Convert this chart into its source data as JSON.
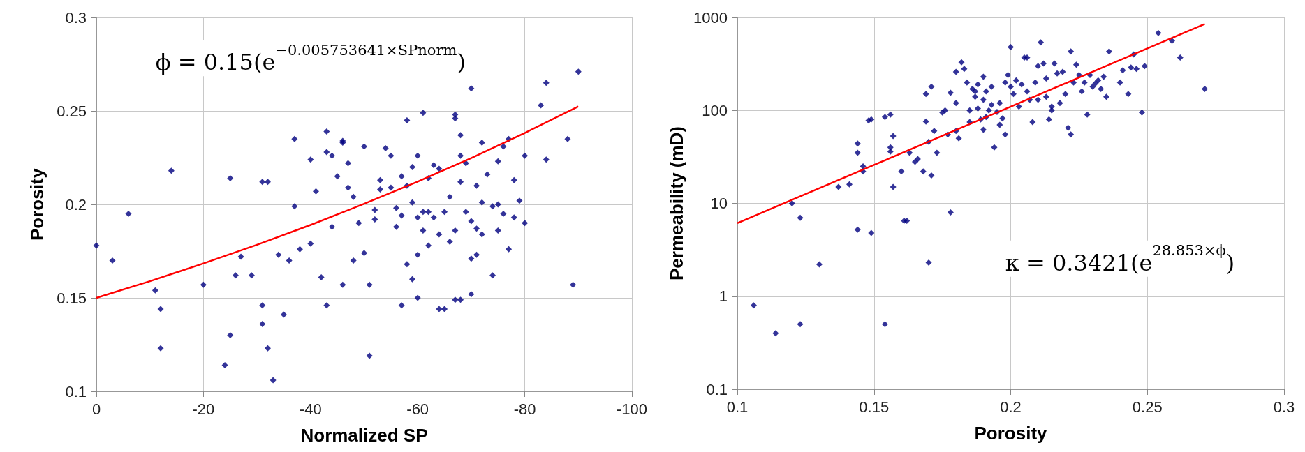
{
  "chart_data": [
    {
      "type": "scatter",
      "xlabel": "Normalized SP",
      "ylabel": "Porosity",
      "xlim": [
        0,
        -100
      ],
      "xticks": [
        0,
        -20,
        -40,
        -60,
        -80,
        -100
      ],
      "ylim": [
        0.1,
        0.3
      ],
      "yticks": [
        0.1,
        0.15,
        0.2,
        0.25,
        0.3
      ],
      "grid": true,
      "marker": "diamond",
      "annotations": [
        "ϕ = 0.15(e$^{−0.005753641×SPnorm}$)"
      ],
      "series": [
        {
          "type": "scatter",
          "color": "#000080",
          "x": [
            0,
            -3,
            -6,
            -11,
            -12,
            -12,
            -14,
            -20,
            -24,
            -25,
            -25,
            -26,
            -27,
            -29,
            -31,
            -32,
            -31,
            -31,
            -32,
            -33,
            -34,
            -35,
            -36,
            -37,
            -37,
            -38,
            -40,
            -40,
            -41,
            -42,
            -43,
            -43,
            -43,
            -44,
            -44,
            -45,
            -46,
            -46,
            -46,
            -47,
            -47,
            -48,
            -48,
            -49,
            -50,
            -50,
            -51,
            -51,
            -52,
            -52,
            -53,
            -53,
            -54,
            -55,
            -55,
            -56,
            -56,
            -57,
            -57,
            -57,
            -58,
            -58,
            -58,
            -59,
            -59,
            -60,
            -60,
            -60,
            -61,
            -61,
            -61,
            -62,
            -62,
            -63,
            -63,
            -64,
            -64,
            -65,
            -65,
            -66,
            -66,
            -67,
            -67,
            -67,
            -67,
            -68,
            -68,
            -68,
            -68,
            -69,
            -69,
            -70,
            -70,
            -70,
            -70,
            -71,
            -71,
            -72,
            -72,
            -72,
            -73,
            -74,
            -74,
            -75,
            -75,
            -75,
            -76,
            -76,
            -77,
            -77,
            -78,
            -78,
            -79,
            -80,
            -80,
            -83,
            -84,
            -84,
            -88,
            -89,
            -90,
            -71,
            -64,
            -62,
            -59,
            -60
          ],
          "values": [
            0.178,
            0.17,
            0.195,
            0.154,
            0.144,
            0.123,
            0.218,
            0.157,
            0.114,
            0.214,
            0.13,
            0.162,
            0.172,
            0.162,
            0.212,
            0.212,
            0.146,
            0.136,
            0.123,
            0.106,
            0.173,
            0.141,
            0.17,
            0.235,
            0.199,
            0.176,
            0.224,
            0.179,
            0.207,
            0.161,
            0.146,
            0.239,
            0.228,
            0.226,
            0.188,
            0.215,
            0.233,
            0.234,
            0.157,
            0.222,
            0.209,
            0.17,
            0.204,
            0.19,
            0.231,
            0.174,
            0.119,
            0.157,
            0.197,
            0.192,
            0.213,
            0.208,
            0.23,
            0.226,
            0.209,
            0.198,
            0.188,
            0.194,
            0.215,
            0.146,
            0.245,
            0.168,
            0.21,
            0.22,
            0.201,
            0.226,
            0.193,
            0.173,
            0.249,
            0.186,
            0.196,
            0.178,
            0.214,
            0.221,
            0.193,
            0.219,
            0.184,
            0.144,
            0.196,
            0.204,
            0.18,
            0.248,
            0.246,
            0.186,
            0.149,
            0.237,
            0.226,
            0.212,
            0.149,
            0.222,
            0.196,
            0.262,
            0.191,
            0.171,
            0.152,
            0.21,
            0.187,
            0.233,
            0.201,
            0.184,
            0.216,
            0.199,
            0.162,
            0.223,
            0.2,
            0.186,
            0.231,
            0.195,
            0.235,
            0.176,
            0.213,
            0.193,
            0.202,
            0.19,
            0.226,
            0.253,
            0.265,
            0.224,
            0.235,
            0.157,
            0.271,
            0.173,
            0.144,
            0.196,
            0.16,
            0.15
          ]
        },
        {
          "type": "line",
          "color": "#ff0000",
          "marker": "none",
          "x": [
            0,
            -10,
            -20,
            -30,
            -40,
            -50,
            -60,
            -70,
            -80,
            -90
          ],
          "values": [
            0.15,
            0.1589,
            0.1684,
            0.1784,
            0.189,
            0.2003,
            0.2122,
            0.2248,
            0.2382,
            0.2524
          ]
        }
      ]
    },
    {
      "type": "scatter",
      "xlabel": "Porosity",
      "ylabel": "Permeability (mD)",
      "log": "y",
      "xlim": [
        0.1,
        0.3
      ],
      "xticks": [
        0.1,
        0.15,
        0.2,
        0.25,
        0.3
      ],
      "ylim": [
        0.1,
        1000
      ],
      "yticks": [
        0.1,
        1,
        10,
        100,
        1000
      ],
      "grid": true,
      "marker": "diamond",
      "annotations": [
        "κ = 0.3421(e$^{28.853×ϕ}$)"
      ],
      "series": [
        {
          "type": "scatter",
          "color": "#000080",
          "x": [
            0.106,
            0.114,
            0.12,
            0.123,
            0.123,
            0.13,
            0.137,
            0.141,
            0.144,
            0.144,
            0.144,
            0.146,
            0.146,
            0.148,
            0.149,
            0.149,
            0.154,
            0.154,
            0.156,
            0.156,
            0.156,
            0.157,
            0.157,
            0.16,
            0.161,
            0.162,
            0.163,
            0.165,
            0.166,
            0.168,
            0.169,
            0.169,
            0.17,
            0.171,
            0.17,
            0.171,
            0.172,
            0.173,
            0.175,
            0.176,
            0.177,
            0.178,
            0.178,
            0.18,
            0.18,
            0.18,
            0.181,
            0.182,
            0.183,
            0.184,
            0.185,
            0.185,
            0.186,
            0.187,
            0.187,
            0.188,
            0.188,
            0.189,
            0.19,
            0.19,
            0.19,
            0.191,
            0.191,
            0.192,
            0.193,
            0.193,
            0.194,
            0.195,
            0.196,
            0.196,
            0.197,
            0.198,
            0.198,
            0.199,
            0.2,
            0.2,
            0.201,
            0.202,
            0.203,
            0.204,
            0.205,
            0.206,
            0.206,
            0.207,
            0.208,
            0.209,
            0.21,
            0.211,
            0.212,
            0.213,
            0.213,
            0.214,
            0.215,
            0.216,
            0.217,
            0.218,
            0.219,
            0.22,
            0.221,
            0.222,
            0.222,
            0.223,
            0.224,
            0.225,
            0.226,
            0.227,
            0.228,
            0.229,
            0.23,
            0.231,
            0.232,
            0.233,
            0.234,
            0.235,
            0.236,
            0.24,
            0.241,
            0.243,
            0.244,
            0.245,
            0.246,
            0.248,
            0.249,
            0.254,
            0.259,
            0.262,
            0.271,
            0.21,
            0.215
          ],
          "values": [
            0.8,
            0.4,
            10,
            7,
            0.5,
            2.2,
            15,
            16,
            44,
            35,
            5.2,
            25,
            22,
            78,
            80,
            4.8,
            85,
            0.5,
            90,
            40,
            36,
            15,
            53,
            22,
            6.5,
            6.5,
            35,
            28,
            30,
            22,
            150,
            76,
            46,
            20,
            2.3,
            180,
            60,
            35,
            95,
            100,
            55,
            8,
            155,
            260,
            120,
            60,
            50,
            330,
            280,
            200,
            100,
            75,
            170,
            160,
            140,
            190,
            105,
            80,
            62,
            230,
            130,
            160,
            85,
            100,
            180,
            115,
            40,
            96,
            120,
            70,
            82,
            200,
            55,
            240,
            480,
            180,
            150,
            210,
            110,
            190,
            370,
            370,
            160,
            130,
            75,
            200,
            300,
            540,
            320,
            220,
            140,
            80,
            110,
            320,
            250,
            120,
            260,
            150,
            65,
            430,
            55,
            200,
            310,
            240,
            160,
            200,
            90,
            240,
            180,
            195,
            210,
            170,
            230,
            140,
            430,
            200,
            270,
            150,
            290,
            400,
            280,
            95,
            300,
            680,
            560,
            370,
            170,
            130,
            100
          ]
        },
        {
          "type": "line",
          "color": "#ff0000",
          "marker": "none",
          "x": [
            0.1,
            0.125,
            0.15,
            0.175,
            0.2,
            0.225,
            0.25,
            0.271
          ],
          "values": [
            6.13,
            12.6,
            25.9,
            53.3,
            109.7,
            225.6,
            464,
            851
          ]
        }
      ]
    }
  ]
}
